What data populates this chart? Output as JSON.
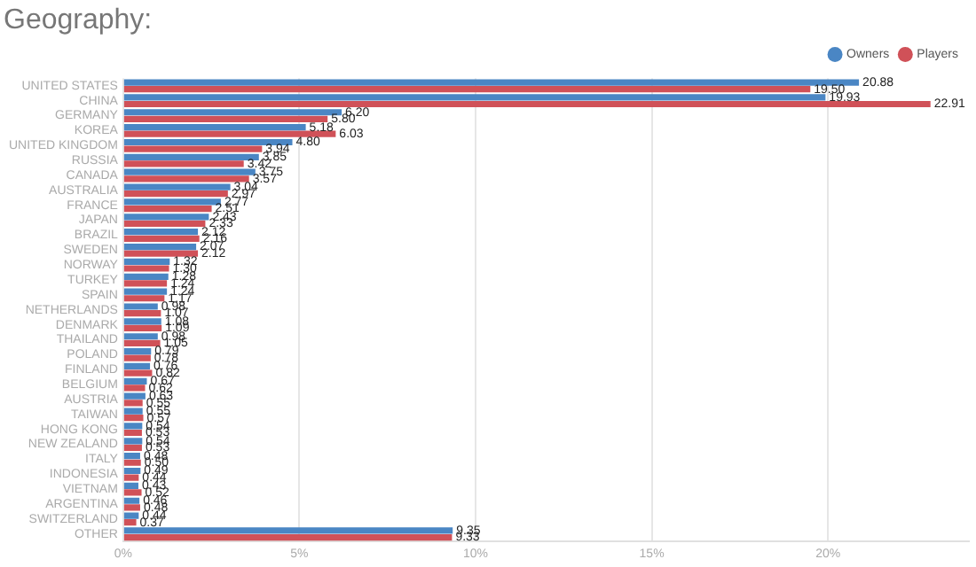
{
  "chart_data": {
    "type": "bar",
    "orientation": "horizontal",
    "title": "Geography:",
    "categories": [
      "UNITED STATES",
      "CHINA",
      "GERMANY",
      "KOREA",
      "UNITED KINGDOM",
      "RUSSIA",
      "CANADA",
      "AUSTRALIA",
      "FRANCE",
      "JAPAN",
      "BRAZIL",
      "SWEDEN",
      "NORWAY",
      "TURKEY",
      "SPAIN",
      "NETHERLANDS",
      "DENMARK",
      "THAILAND",
      "POLAND",
      "FINLAND",
      "BELGIUM",
      "AUSTRIA",
      "TAIWAN",
      "HONG KONG",
      "NEW ZEALAND",
      "ITALY",
      "INDONESIA",
      "VIETNAM",
      "ARGENTINA",
      "SWITZERLAND",
      "OTHER"
    ],
    "series": [
      {
        "name": "Owners",
        "color": "#4a86c4",
        "values": [
          20.88,
          19.93,
          6.2,
          5.18,
          4.8,
          3.85,
          3.75,
          3.04,
          2.77,
          2.43,
          2.12,
          2.07,
          1.32,
          1.28,
          1.24,
          0.98,
          1.08,
          0.98,
          0.79,
          0.76,
          0.67,
          0.63,
          0.55,
          0.54,
          0.54,
          0.48,
          0.49,
          0.43,
          0.46,
          0.44,
          9.35
        ],
        "value_labels": [
          "20.88",
          "19.93",
          "6.20",
          "5.18",
          "4.80",
          "3.85",
          "3.75",
          "3.04",
          "2.77",
          "2.43",
          "2.12",
          "2.07",
          "1.32",
          "1.28",
          "1.24",
          "0.98",
          "1.08",
          "0.98",
          "0.79",
          "0.76",
          "0.67",
          "0.63",
          "0.55",
          "0.54",
          "0.54",
          "0.48",
          "0.49",
          "0.43",
          "0.46",
          "0.44",
          "9.35"
        ]
      },
      {
        "name": "Players",
        "color": "#d05158",
        "values": [
          19.5,
          22.91,
          5.8,
          6.03,
          3.94,
          3.42,
          3.57,
          2.97,
          2.51,
          2.33,
          2.16,
          2.12,
          1.3,
          1.24,
          1.17,
          1.07,
          1.09,
          1.05,
          0.78,
          0.82,
          0.62,
          0.55,
          0.57,
          0.53,
          0.53,
          0.5,
          0.44,
          0.52,
          0.48,
          0.37,
          9.33
        ],
        "value_labels": [
          "19.50",
          "22.91",
          "5.80",
          "6.03",
          "3.94",
          "3.42",
          "3.57",
          "2.97",
          "2.51",
          "2.33",
          "2.16",
          "2.12",
          "1.30",
          "1.24",
          "1.17",
          "1.07",
          "1.09",
          "1.05",
          "0.78",
          "0.82",
          "0.62",
          "0.55",
          "0.57",
          "0.53",
          "0.53",
          "0.50",
          "0.44",
          "0.52",
          "0.48",
          "0.37",
          "9.33"
        ]
      }
    ],
    "xlim": [
      0,
      24
    ],
    "xticks": [
      {
        "value": 0,
        "label": "0%"
      },
      {
        "value": 5,
        "label": "5%"
      },
      {
        "value": 10,
        "label": "10%"
      },
      {
        "value": 15,
        "label": "15%"
      },
      {
        "value": 20,
        "label": "20%"
      }
    ],
    "grid": "x",
    "legend": "top right"
  }
}
